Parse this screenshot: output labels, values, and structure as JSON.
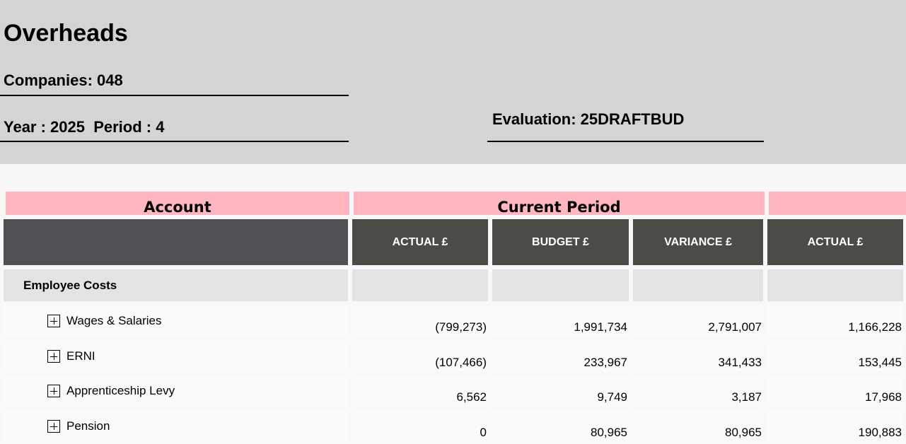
{
  "report": {
    "title": "Overheads",
    "companies": "Companies: 048",
    "year_period": "Year : 2025  Period : 4",
    "evaluation": "Evaluation: 25DRAFTBUD"
  },
  "groups": {
    "account": "Account",
    "current_period": "Current Period",
    "ytd": ""
  },
  "columns": [
    "ACTUAL £",
    "BUDGET £",
    "VARIANCE £",
    "ACTUAL £"
  ],
  "colors": {
    "header_bg": "#d4d4d4",
    "group_bg": "#ffb6c1",
    "account_head_bg": "#515054",
    "col_head_bg": "#4c4b45"
  },
  "section": {
    "name": "Employee Costs"
  },
  "rows": [
    {
      "account": "Wages & Salaries",
      "values": [
        "(799,273)",
        "1,991,734",
        "2,791,007",
        "1,166,228"
      ]
    },
    {
      "account": "ERNI",
      "values": [
        "(107,466)",
        "233,967",
        "341,433",
        "153,445"
      ]
    },
    {
      "account": "Apprenticeship Levy",
      "values": [
        "6,562",
        "9,749",
        "3,187",
        "17,968"
      ]
    },
    {
      "account": "Pension",
      "values": [
        "0",
        "80,965",
        "80,965",
        "190,883"
      ]
    }
  ]
}
